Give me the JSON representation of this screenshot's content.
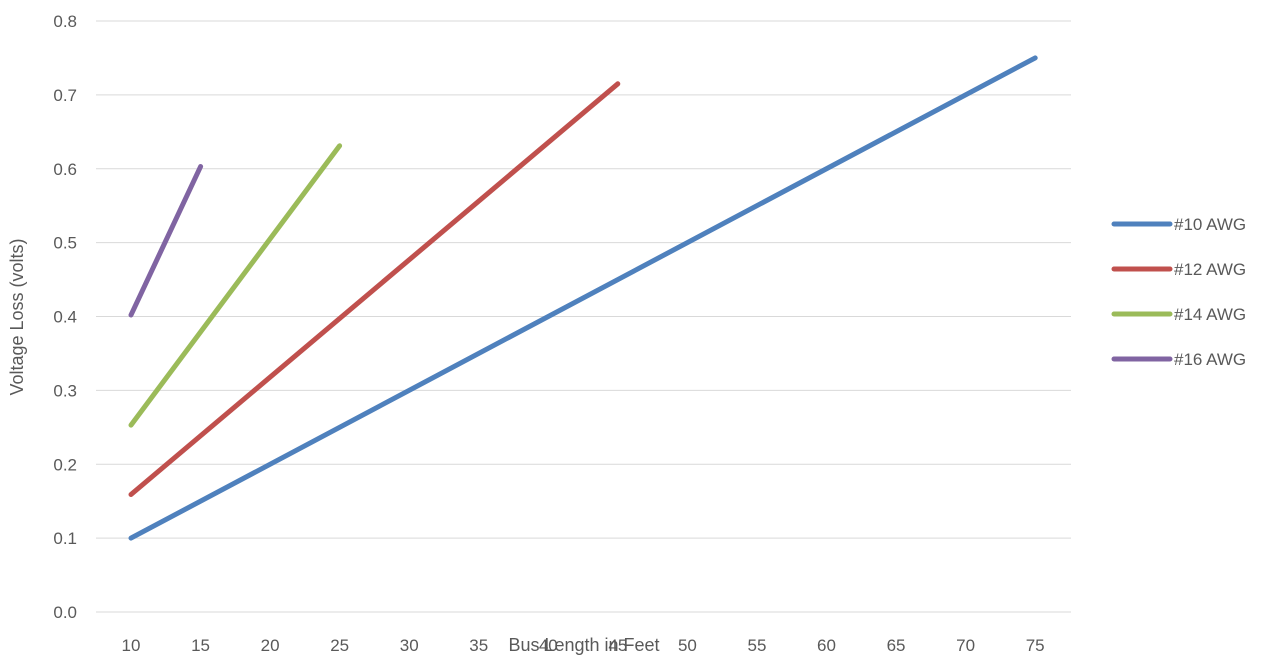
{
  "chart_data": {
    "type": "line",
    "title": "",
    "xlabel": "Bus Length in Feet",
    "ylabel": "Voltage Loss (volts)",
    "x_categories": [
      "10",
      "15",
      "20",
      "25",
      "30",
      "35",
      "40",
      "45",
      "50",
      "55",
      "60",
      "65",
      "70",
      "75"
    ],
    "ylim": [
      0.0,
      0.8
    ],
    "y_ticks": [
      "0.0",
      "0.1",
      "0.2",
      "0.3",
      "0.4",
      "0.5",
      "0.6",
      "0.7",
      "0.8"
    ],
    "grid": true,
    "legend_position": "right",
    "series": [
      {
        "name": "#10 AWG",
        "color": "#4F81BD",
        "x": [
          10,
          75
        ],
        "y": [
          0.1,
          0.75
        ]
      },
      {
        "name": "#12 AWG",
        "color": "#C0504D",
        "x": [
          10,
          45
        ],
        "y": [
          0.159,
          0.715
        ]
      },
      {
        "name": "#14 AWG",
        "color": "#9BBB59",
        "x": [
          10,
          25
        ],
        "y": [
          0.253,
          0.631
        ]
      },
      {
        "name": "#16 AWG",
        "color": "#8064A2",
        "x": [
          10,
          15
        ],
        "y": [
          0.402,
          0.603
        ]
      }
    ]
  }
}
